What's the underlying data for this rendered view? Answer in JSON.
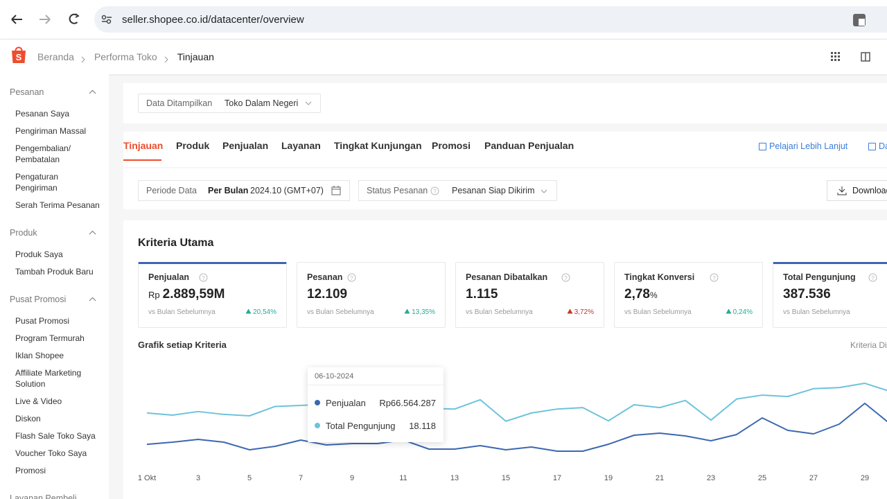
{
  "browser": {
    "url": "seller.shopee.co.id/datacenter/overview"
  },
  "header": {
    "breadcrumb": [
      "Beranda",
      "Performa Toko",
      "Tinjauan"
    ]
  },
  "sidebar": {
    "groups": [
      {
        "title": "Pesanan",
        "items": [
          "Pesanan Saya",
          "Pengiriman Massal",
          "Pengembalian/ Pembatalan",
          "Pengaturan Pengiriman",
          "Serah Terima Pesanan"
        ]
      },
      {
        "title": "Produk",
        "items": [
          "Produk Saya",
          "Tambah Produk Baru"
        ]
      },
      {
        "title": "Pusat Promosi",
        "items": [
          "Pusat Promosi",
          "Program Termurah",
          "Iklan Shopee",
          "Affiliate Marketing Solution",
          "Live & Video",
          "Diskon",
          "Flash Sale Toko Saya",
          "Voucher Toko Saya",
          "Promosi"
        ]
      },
      {
        "title": "Layanan Pembeli",
        "items": []
      }
    ]
  },
  "display_filter": {
    "label": "Data Ditampilkan",
    "value": "Toko Dalam Negeri"
  },
  "tabs": {
    "items": [
      "Tinjauan",
      "Produk",
      "Penjualan",
      "Layanan",
      "Tingkat Kunjungan",
      "Promosi",
      "Panduan Penjualan"
    ],
    "active": 0,
    "links": [
      "Pelajari Lebih Lanjut",
      "Da"
    ]
  },
  "period": {
    "label": "Periode Data",
    "mode": "Per Bulan",
    "value": "2024.10 (GMT+07)"
  },
  "status": {
    "label": "Status Pesanan",
    "value": "Pesanan Siap Dikirim"
  },
  "download": "Download",
  "key_metrics": {
    "title": "Kriteria Utama",
    "cards": [
      {
        "name": "Penjualan",
        "prefix": "Rp",
        "value": "2.889,59M",
        "compare": "vs Bulan Sebelumnya",
        "change": "20,54%",
        "change_color": "#26aa99",
        "selected": true
      },
      {
        "name": "Pesanan",
        "value": "12.109",
        "compare": "vs Bulan Sebelumnya",
        "change": "13,35%",
        "change_color": "#26aa99",
        "selected": false
      },
      {
        "name": "Pesanan Dibatalkan",
        "value": "1.115",
        "compare": "vs Bulan Sebelumnya",
        "change": "3,72%",
        "change_color": "#c0392b",
        "selected": false
      },
      {
        "name": "Tingkat Konversi",
        "value": "2,78",
        "unit": "%",
        "compare": "vs Bulan Sebelumnya",
        "change": "0,24%",
        "change_color": "#26aa99",
        "selected": false
      },
      {
        "name": "Total Pengunjung",
        "value": "387.536",
        "compare": "vs Bulan Sebelumnya",
        "change": "",
        "change_color": "#26aa99",
        "selected": true
      }
    ]
  },
  "chart_section": {
    "title": "Grafik setiap Kriteria",
    "selector": "Kriteria Di"
  },
  "chart_data": {
    "type": "line",
    "categories": [
      "1 Okt",
      null,
      "3",
      null,
      "5",
      null,
      "7",
      null,
      "9",
      null,
      "11",
      null,
      "13",
      null,
      "15",
      null,
      "17",
      null,
      "19",
      null,
      "21",
      null,
      "23",
      null,
      "25",
      null,
      "27",
      null,
      "29",
      null
    ],
    "series": [
      {
        "name": "Penjualan",
        "color": "#3b67b1",
        "axis": "y2",
        "values": [
          72000000,
          77700000,
          85100000,
          77700000,
          57400000,
          66564287,
          83300000,
          70300000,
          74000000,
          74000000,
          83300000,
          59200000,
          59200000,
          68500000,
          57400000,
          64800000,
          53700000,
          53700000,
          72200000,
          96200000,
          101800000,
          94400000,
          81400000,
          98100000,
          142500000,
          109200000,
          99900000,
          125800000,
          181300000,
          125800000
        ]
      },
      {
        "name": "Total Pengunjung",
        "color": "#6cc3dc",
        "values": [
          16300,
          15700,
          16700,
          15900,
          15500,
          18118,
          18400,
          18800,
          19400,
          18400,
          18000,
          17600,
          17400,
          20000,
          14000,
          16300,
          17400,
          17800,
          14100,
          18600,
          17800,
          19800,
          14300,
          20200,
          21300,
          20900,
          23100,
          23400,
          24600,
          22300
        ]
      }
    ],
    "ylim": [
      0,
      31000
    ],
    "y2lim": [
      0,
      296000000
    ]
  },
  "tooltip": {
    "date": "06-10-2024",
    "values": [
      "Rp66.564.287",
      "18.118"
    ]
  }
}
